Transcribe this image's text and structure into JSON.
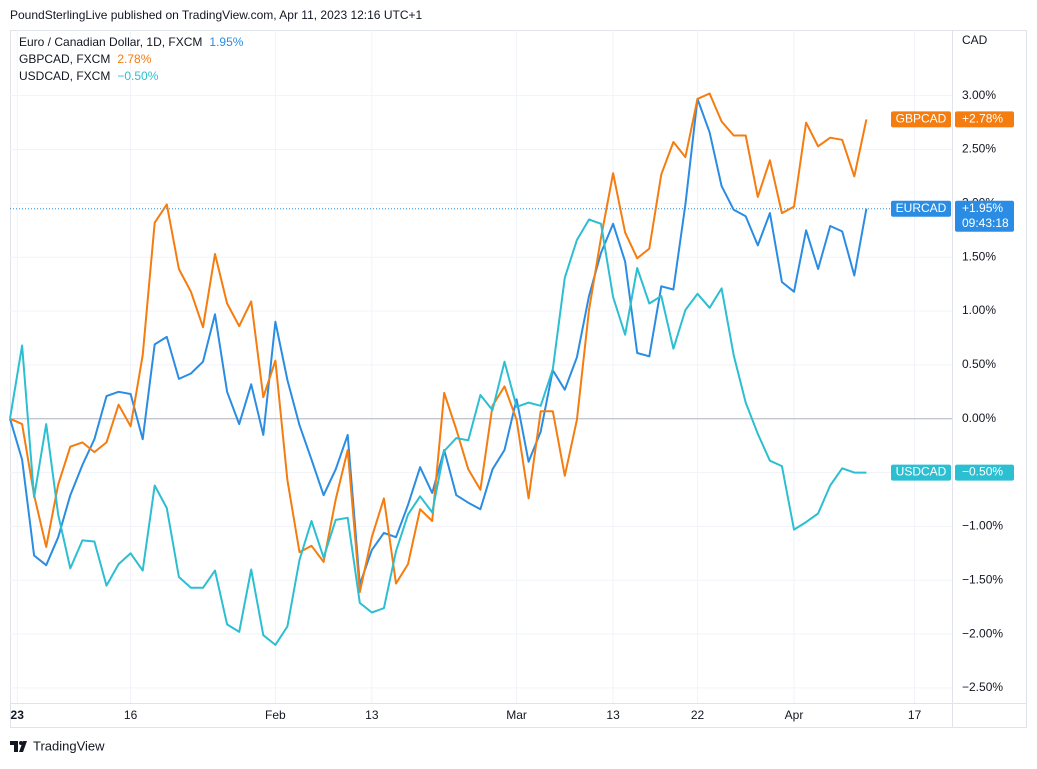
{
  "header": "PoundSterlingLive published on TradingView.com, Apr 11, 2023 12:16 UTC+1",
  "footer": "TradingView",
  "chart_data": {
    "type": "line",
    "y_unit_label": "CAD",
    "grid": true,
    "baseline": 0,
    "x": [
      0,
      1,
      2,
      3,
      4,
      5,
      6,
      7,
      8,
      9,
      10,
      11,
      12,
      13,
      14,
      15,
      16,
      17,
      18,
      19,
      20,
      21,
      22,
      23,
      24,
      25,
      26,
      27,
      28,
      29,
      30,
      31,
      32,
      33,
      34,
      35,
      36,
      37,
      38,
      39,
      40,
      41,
      42,
      43,
      44,
      45,
      46,
      47,
      48,
      49,
      50,
      51,
      52,
      53,
      54,
      55,
      56,
      57,
      58,
      59,
      60,
      61,
      62,
      63,
      64,
      65,
      66,
      67,
      68,
      69,
      70,
      71
    ],
    "xlim": [
      0,
      78.1
    ],
    "xticks": [
      {
        "value": 0.6,
        "label": "23"
      },
      {
        "value": 10,
        "label": "16"
      },
      {
        "value": 22,
        "label": "Feb"
      },
      {
        "value": 30,
        "label": "13"
      },
      {
        "value": 42,
        "label": "Mar"
      },
      {
        "value": 50,
        "label": "13"
      },
      {
        "value": 57,
        "label": "22"
      },
      {
        "value": 65,
        "label": "Apr"
      },
      {
        "value": 75,
        "label": "17"
      }
    ],
    "ylim": [
      -2.64,
      3.61
    ],
    "yticks": [
      {
        "value": -2.5,
        "label": "−2.50%"
      },
      {
        "value": -2,
        "label": "−2.00%"
      },
      {
        "value": -1.5,
        "label": "−1.50%"
      },
      {
        "value": -1,
        "label": "−1.00%"
      },
      {
        "value": -0.5,
        "label": "−0.50%"
      },
      {
        "value": 0,
        "label": "0.00%"
      },
      {
        "value": 0.5,
        "label": "0.50%"
      },
      {
        "value": 1,
        "label": "1.00%"
      },
      {
        "value": 1.5,
        "label": "1.50%"
      },
      {
        "value": 2,
        "label": "2.00%"
      },
      {
        "value": 2.5,
        "label": "2.50%"
      },
      {
        "value": 3,
        "label": "3.00%"
      }
    ],
    "series": [
      {
        "name": "Euro / Canadian Dollar, 1D, FXCM",
        "legend_value": "1.95%",
        "badge_name": "EURCAD",
        "badge_value": "+1.95%",
        "countdown": "09:43:18",
        "color": "#2a8de3",
        "last_line": true,
        "values": [
          0,
          -0.38,
          -1.27,
          -1.36,
          -1.1,
          -0.71,
          -0.43,
          -0.19,
          0.21,
          0.25,
          0.23,
          -0.19,
          0.69,
          0.76,
          0.37,
          0.42,
          0.53,
          0.97,
          0.25,
          -0.05,
          0.32,
          -0.15,
          0.9,
          0.36,
          -0.06,
          -0.38,
          -0.71,
          -0.47,
          -0.15,
          -1.54,
          -1.22,
          -1.06,
          -1.1,
          -0.8,
          -0.45,
          -0.69,
          -0.29,
          -0.71,
          -0.78,
          -0.84,
          -0.47,
          -0.29,
          0.18,
          -0.4,
          -0.12,
          0.45,
          0.27,
          0.57,
          1.14,
          1.54,
          1.81,
          1.46,
          0.61,
          0.58,
          1.23,
          1.2,
          1.99,
          2.97,
          2.66,
          2.16,
          1.94,
          1.88,
          1.61,
          1.91,
          1.27,
          1.18,
          1.75,
          1.39,
          1.79,
          1.74,
          1.33,
          1.95
        ]
      },
      {
        "name": "GBPCAD, FXCM",
        "legend_value": "2.78%",
        "badge_name": "GBPCAD",
        "badge_value": "+2.78%",
        "color": "#f57c0f",
        "values": [
          0,
          -0.05,
          -0.71,
          -1.19,
          -0.61,
          -0.26,
          -0.22,
          -0.31,
          -0.22,
          0.13,
          -0.07,
          0.59,
          1.82,
          1.99,
          1.39,
          1.18,
          0.85,
          1.53,
          1.07,
          0.86,
          1.09,
          0.2,
          0.54,
          -0.57,
          -1.24,
          -1.18,
          -1.33,
          -0.75,
          -0.29,
          -1.61,
          -1.1,
          -0.74,
          -1.53,
          -1.35,
          -0.84,
          -0.95,
          0.24,
          -0.1,
          -0.47,
          -0.66,
          0.12,
          0.3,
          -0.01,
          -0.74,
          0.07,
          0.07,
          -0.53,
          -0.01,
          1.01,
          1.68,
          2.28,
          1.73,
          1.49,
          1.58,
          2.27,
          2.57,
          2.43,
          2.97,
          3.02,
          2.76,
          2.63,
          2.63,
          2.06,
          2.4,
          1.91,
          1.97,
          2.75,
          2.53,
          2.61,
          2.59,
          2.25,
          2.78
        ]
      },
      {
        "name": "USDCAD, FXCM",
        "legend_value": "−0.50%",
        "badge_name": "USDCAD",
        "badge_value": "−0.50%",
        "color": "#2cbfd1",
        "values": [
          0,
          0.68,
          -0.73,
          -0.05,
          -0.89,
          -1.39,
          -1.13,
          -1.14,
          -1.55,
          -1.35,
          -1.25,
          -1.41,
          -0.62,
          -0.83,
          -1.47,
          -1.57,
          -1.57,
          -1.41,
          -1.91,
          -1.98,
          -1.4,
          -2.01,
          -2.1,
          -1.93,
          -1.31,
          -0.95,
          -1.29,
          -0.94,
          -0.92,
          -1.71,
          -1.8,
          -1.76,
          -1.23,
          -0.89,
          -0.72,
          -0.87,
          -0.3,
          -0.18,
          -0.2,
          0.22,
          0.08,
          0.53,
          0.11,
          0.15,
          0.12,
          0.46,
          1.31,
          1.66,
          1.85,
          1.81,
          1.13,
          0.78,
          1.4,
          1.07,
          1.14,
          0.65,
          1.01,
          1.16,
          1.03,
          1.21,
          0.59,
          0.15,
          -0.14,
          -0.39,
          -0.44,
          -1.03,
          -0.96,
          -0.88,
          -0.62,
          -0.46,
          -0.5,
          -0.5
        ]
      }
    ]
  }
}
